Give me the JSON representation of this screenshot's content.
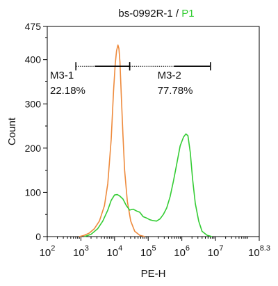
{
  "chart_data": {
    "type": "line",
    "title": {
      "part1": "bs-0992R-1 / ",
      "part2": "P1"
    },
    "xlabel": "PE-H",
    "ylabel": "Count",
    "x_scale": "log",
    "xlim": [
      2,
      8.3
    ],
    "ylim": [
      0,
      475
    ],
    "x_ticks": [
      {
        "base": "10",
        "exp": "2",
        "pos": 2
      },
      {
        "base": "10",
        "exp": "3",
        "pos": 3
      },
      {
        "base": "10",
        "exp": "4",
        "pos": 4
      },
      {
        "base": "10",
        "exp": "5",
        "pos": 5
      },
      {
        "base": "10",
        "exp": "6",
        "pos": 6
      },
      {
        "base": "10",
        "exp": "7",
        "pos": 7
      },
      {
        "base": "10",
        "exp": "8.3",
        "pos": 8.3
      }
    ],
    "y_ticks": [
      "0",
      "100",
      "200",
      "300",
      "400",
      "475"
    ],
    "y_tick_values": [
      0,
      100,
      200,
      300,
      400,
      475
    ],
    "colors": {
      "control": "#ee8a3c",
      "sample": "#33cc33",
      "title_accent": "#2ecc2e"
    },
    "series": [
      {
        "key": "control",
        "points": [
          [
            2.95,
            0
          ],
          [
            3.1,
            3
          ],
          [
            3.25,
            8
          ],
          [
            3.4,
            18
          ],
          [
            3.55,
            35
          ],
          [
            3.7,
            70
          ],
          [
            3.8,
            120
          ],
          [
            3.9,
            220
          ],
          [
            3.97,
            330
          ],
          [
            4.02,
            390
          ],
          [
            4.06,
            420
          ],
          [
            4.1,
            433
          ],
          [
            4.13,
            425
          ],
          [
            4.16,
            395
          ],
          [
            4.2,
            320
          ],
          [
            4.25,
            230
          ],
          [
            4.3,
            150
          ],
          [
            4.38,
            80
          ],
          [
            4.48,
            35
          ],
          [
            4.6,
            12
          ],
          [
            4.75,
            3
          ],
          [
            4.9,
            0
          ]
        ]
      },
      {
        "key": "sample",
        "points": [
          [
            3.1,
            0
          ],
          [
            3.3,
            5
          ],
          [
            3.5,
            18
          ],
          [
            3.65,
            35
          ],
          [
            3.8,
            60
          ],
          [
            3.9,
            82
          ],
          [
            4.0,
            94
          ],
          [
            4.08,
            95
          ],
          [
            4.15,
            92
          ],
          [
            4.25,
            85
          ],
          [
            4.35,
            70
          ],
          [
            4.45,
            60
          ],
          [
            4.55,
            62
          ],
          [
            4.65,
            58
          ],
          [
            4.75,
            55
          ],
          [
            4.85,
            45
          ],
          [
            4.95,
            42
          ],
          [
            5.05,
            38
          ],
          [
            5.15,
            36
          ],
          [
            5.25,
            35
          ],
          [
            5.35,
            40
          ],
          [
            5.45,
            50
          ],
          [
            5.55,
            65
          ],
          [
            5.65,
            90
          ],
          [
            5.75,
            125
          ],
          [
            5.85,
            165
          ],
          [
            5.95,
            205
          ],
          [
            6.05,
            225
          ],
          [
            6.12,
            232
          ],
          [
            6.18,
            228
          ],
          [
            6.25,
            190
          ],
          [
            6.32,
            130
          ],
          [
            6.4,
            75
          ],
          [
            6.5,
            35
          ],
          [
            6.6,
            12
          ],
          [
            6.75,
            3
          ],
          [
            6.9,
            0
          ]
        ]
      }
    ],
    "gates": [
      {
        "label": "M3-1",
        "value": "22.18%",
        "x_start": 2.85,
        "x_end": 4.45,
        "y": 385
      },
      {
        "label": "M3-2",
        "value": "77.78%",
        "x_start": 4.45,
        "x_end": 6.85,
        "y": 385
      }
    ]
  }
}
